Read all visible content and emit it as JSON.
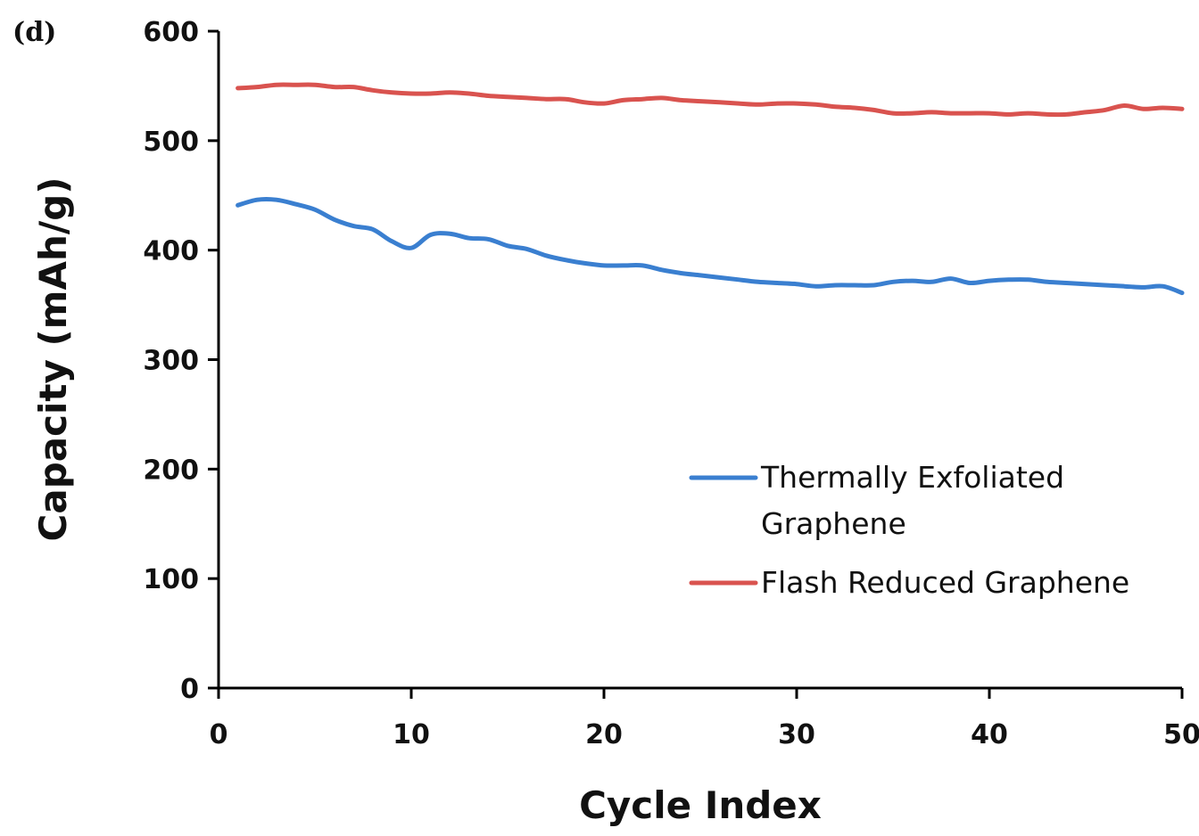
{
  "panel_label": "(d)",
  "chart_data": {
    "type": "line",
    "xlabel": "Cycle Index",
    "ylabel": "Capacity (mAh/g)",
    "xlim": [
      0,
      50
    ],
    "ylim": [
      0,
      600
    ],
    "xticks": [
      0,
      10,
      20,
      30,
      40,
      50
    ],
    "yticks": [
      0,
      100,
      200,
      300,
      400,
      500,
      600
    ],
    "grid": false,
    "legend_position": "center-right",
    "series": [
      {
        "name": "Thermally Exfoliated Graphene",
        "legend_lines": [
          "Thermally Exfoliated",
          "Graphene"
        ],
        "color": "#3a7fd0",
        "x": [
          1,
          2,
          3,
          4,
          5,
          6,
          7,
          8,
          9,
          10,
          11,
          12,
          13,
          14,
          15,
          16,
          17,
          18,
          19,
          20,
          21,
          22,
          23,
          24,
          25,
          26,
          27,
          28,
          29,
          30,
          31,
          32,
          33,
          34,
          35,
          36,
          37,
          38,
          39,
          40,
          41,
          42,
          43,
          44,
          45,
          46,
          47,
          48,
          49,
          50
        ],
        "y": [
          441,
          446,
          446,
          442,
          437,
          428,
          422,
          419,
          408,
          402,
          414,
          415,
          411,
          410,
          404,
          401,
          395,
          391,
          388,
          386,
          386,
          386,
          382,
          379,
          377,
          375,
          373,
          371,
          370,
          369,
          367,
          368,
          368,
          368,
          371,
          372,
          371,
          374,
          370,
          372,
          373,
          373,
          371,
          370,
          369,
          368,
          367,
          366,
          367,
          361
        ]
      },
      {
        "name": "Flash Reduced Graphene",
        "legend_lines": [
          "Flash Reduced Graphene"
        ],
        "color": "#d9534f",
        "x": [
          1,
          2,
          3,
          4,
          5,
          6,
          7,
          8,
          9,
          10,
          11,
          12,
          13,
          14,
          15,
          16,
          17,
          18,
          19,
          20,
          21,
          22,
          23,
          24,
          25,
          26,
          27,
          28,
          29,
          30,
          31,
          32,
          33,
          34,
          35,
          36,
          37,
          38,
          39,
          40,
          41,
          42,
          43,
          44,
          45,
          46,
          47,
          48,
          49,
          50
        ],
        "y": [
          548,
          549,
          551,
          551,
          551,
          549,
          549,
          546,
          544,
          543,
          543,
          544,
          543,
          541,
          540,
          539,
          538,
          538,
          535,
          534,
          537,
          538,
          539,
          537,
          536,
          535,
          534,
          533,
          534,
          534,
          533,
          531,
          530,
          528,
          525,
          525,
          526,
          525,
          525,
          525,
          524,
          525,
          524,
          524,
          526,
          528,
          532,
          529,
          530,
          529
        ]
      }
    ]
  }
}
